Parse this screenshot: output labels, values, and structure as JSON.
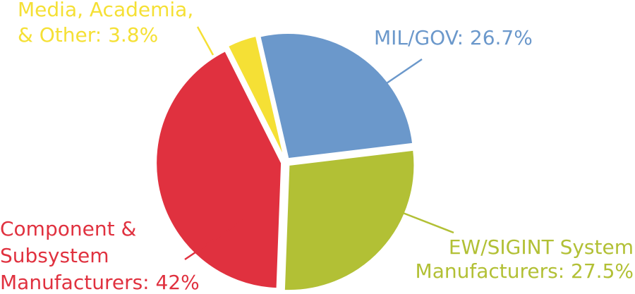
{
  "chart_data": {
    "type": "pie",
    "labels": [
      [
        "MIL/GOV: 26.7%"
      ],
      [
        "EW/SIGINT System",
        "Manufacturers: 27.5%"
      ],
      [
        "Component &",
        "Subsystem",
        "Manufacturers: 42%"
      ],
      [
        "Media, Academia,",
        "& Other: 3.8%"
      ]
    ],
    "values": [
      26.7,
      27.5,
      42,
      3.8
    ],
    "colors": [
      "#6b98cb",
      "#b2c035",
      "#e0313f",
      "#f5e035"
    ]
  }
}
